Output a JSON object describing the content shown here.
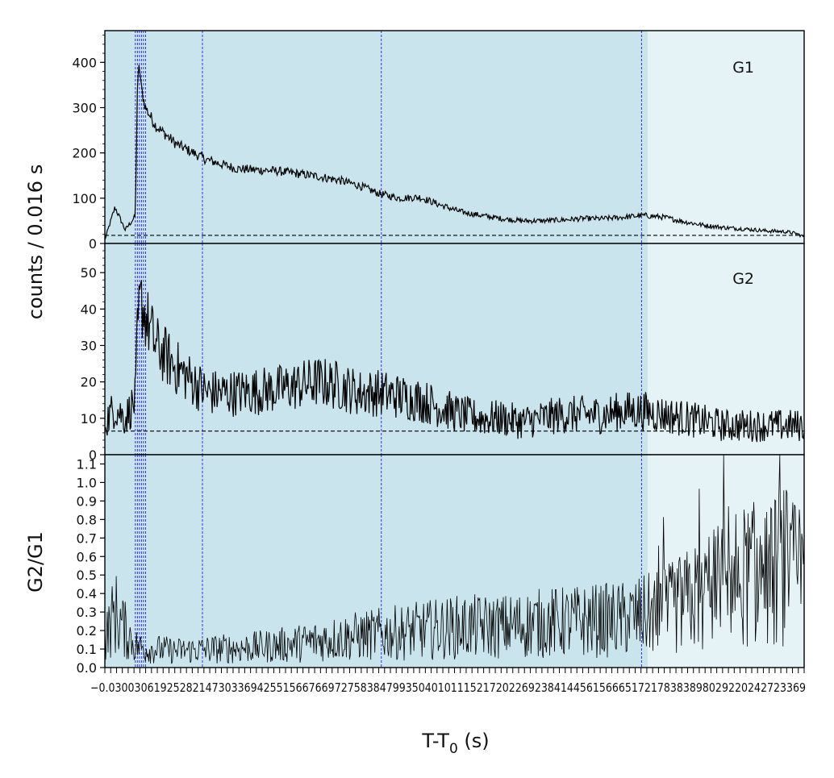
{
  "chart_data": [
    {
      "type": "line",
      "panel": "G1",
      "title": "",
      "panel_label": "G1",
      "ylabel": "counts /  0.016 s",
      "ylim": [
        0,
        470
      ],
      "yticks": [
        0,
        100,
        200,
        300,
        400
      ],
      "background_level": 18,
      "x": [
        -0.15,
        -0.1,
        -0.05,
        0.0,
        0.01,
        0.02,
        0.03,
        0.05,
        0.1,
        0.2,
        0.35,
        0.5,
        0.7,
        0.9,
        1.0,
        1.1,
        1.2,
        1.3,
        1.4,
        1.5,
        1.6,
        1.7,
        1.8,
        1.9,
        2.0,
        2.1,
        2.2,
        2.3,
        2.4,
        2.5,
        2.6,
        2.7,
        2.8,
        2.9,
        3.0,
        3.1,
        3.2,
        3.25,
        3.29
      ],
      "values": [
        8,
        80,
        30,
        60,
        340,
        395,
        340,
        300,
        260,
        220,
        185,
        165,
        160,
        148,
        140,
        128,
        110,
        100,
        102,
        85,
        70,
        62,
        55,
        50,
        50,
        52,
        55,
        55,
        58,
        62,
        58,
        48,
        40,
        35,
        32,
        28,
        26,
        22,
        15
      ]
    },
    {
      "type": "line",
      "panel": "G2",
      "title": "",
      "panel_label": "G2",
      "ylim": [
        0,
        58
      ],
      "yticks": [
        0,
        10,
        20,
        30,
        40,
        50
      ],
      "background_level": 6.5,
      "x": [
        -0.15,
        -0.1,
        -0.05,
        0.0,
        0.01,
        0.02,
        0.03,
        0.05,
        0.1,
        0.2,
        0.35,
        0.5,
        0.7,
        0.9,
        1.0,
        1.1,
        1.2,
        1.3,
        1.4,
        1.5,
        1.6,
        1.7,
        1.8,
        1.9,
        2.0,
        2.1,
        2.2,
        2.3,
        2.4,
        2.5,
        2.6,
        2.7,
        2.8,
        2.9,
        3.0,
        3.1,
        3.2,
        3.25,
        3.29
      ],
      "values": [
        9,
        13,
        10,
        15,
        32,
        40,
        42,
        38,
        30,
        24,
        17,
        17,
        18,
        20,
        19,
        17,
        17,
        16,
        15,
        13,
        11,
        10,
        10,
        9,
        10,
        11,
        11,
        11,
        12,
        12,
        11,
        10,
        9,
        8,
        8,
        8,
        8,
        8,
        8
      ]
    },
    {
      "type": "line",
      "panel": "G2/G1",
      "title": "",
      "ylabel": "G2/G1",
      "xlabel": "T-T0 (s)",
      "xlabel_main": "T-T",
      "xlabel_sub": "0",
      "xlabel_unit": " (s)",
      "ylim": [
        0,
        1.15
      ],
      "yticks": [
        "0.0",
        "0.1",
        "0.2",
        "0.3",
        "0.4",
        "0.5",
        "0.6",
        "0.7",
        "0.8",
        "0.9",
        "1.0",
        "1.1"
      ],
      "x": [
        -0.15,
        -0.1,
        -0.05,
        0.0,
        0.02,
        0.05,
        0.1,
        0.2,
        0.4,
        0.6,
        0.8,
        1.0,
        1.2,
        1.4,
        1.6,
        1.8,
        2.0,
        2.2,
        2.4,
        2.6,
        2.8,
        2.9,
        3.0,
        3.1,
        3.2,
        3.29
      ],
      "values": [
        0.15,
        0.3,
        0.2,
        0.12,
        0.11,
        0.1,
        0.1,
        0.09,
        0.1,
        0.11,
        0.13,
        0.16,
        0.18,
        0.2,
        0.22,
        0.22,
        0.24,
        0.25,
        0.26,
        0.3,
        0.4,
        0.45,
        0.5,
        0.5,
        0.55,
        0.45
      ]
    }
  ],
  "x_axis": {
    "xlim": [
      -0.15,
      3.29
    ],
    "shaded_main_interval": [
      0.0,
      2.52
    ],
    "shaded_light_interval": [
      2.52,
      3.29
    ],
    "vertical_markers": [
      0.0,
      0.01,
      0.02,
      0.03,
      0.04,
      0.05,
      0.33,
      1.21,
      2.49
    ],
    "tick_labels_text": "−0.030030619252821473033694255156676697275838479935040101115217202269238414456156665172178383898029220242723369"
  },
  "colors": {
    "main_shade": "#c9e4ec",
    "light_shade": "#e5f2f6",
    "marker_line": "#2121e0",
    "data_line": "#000000",
    "background_line": "#000000"
  }
}
